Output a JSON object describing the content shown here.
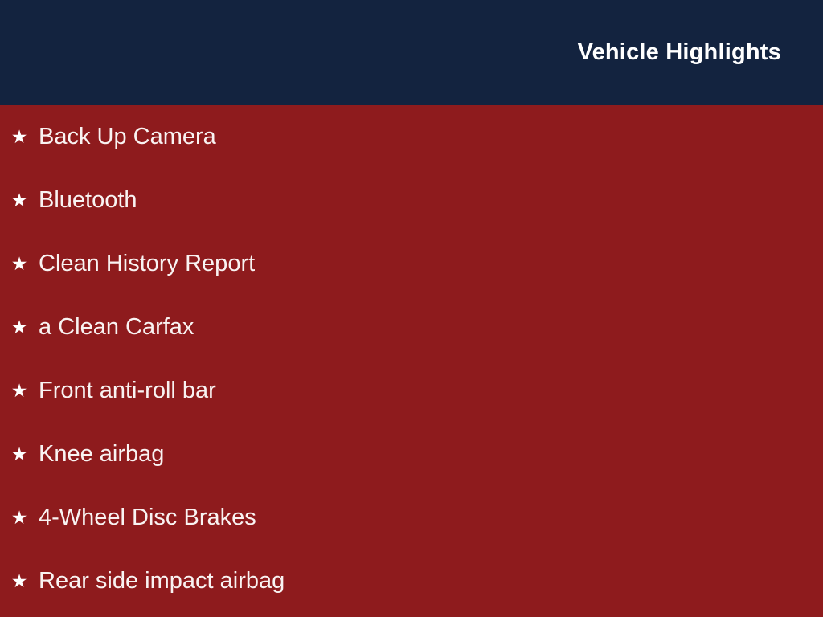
{
  "header": {
    "title": "Vehicle Highlights"
  },
  "colors": {
    "header_bg": "#13233f",
    "body_bg": "#8e1b1d",
    "text": "#ffffff"
  },
  "list": {
    "bullet": "★",
    "bullet_icon": "star-icon",
    "items": [
      "Back Up Camera",
      "Bluetooth",
      "Clean History Report",
      "a Clean Carfax",
      "Front anti-roll bar",
      "Knee airbag",
      "4-Wheel Disc Brakes",
      "Rear side impact airbag"
    ]
  }
}
